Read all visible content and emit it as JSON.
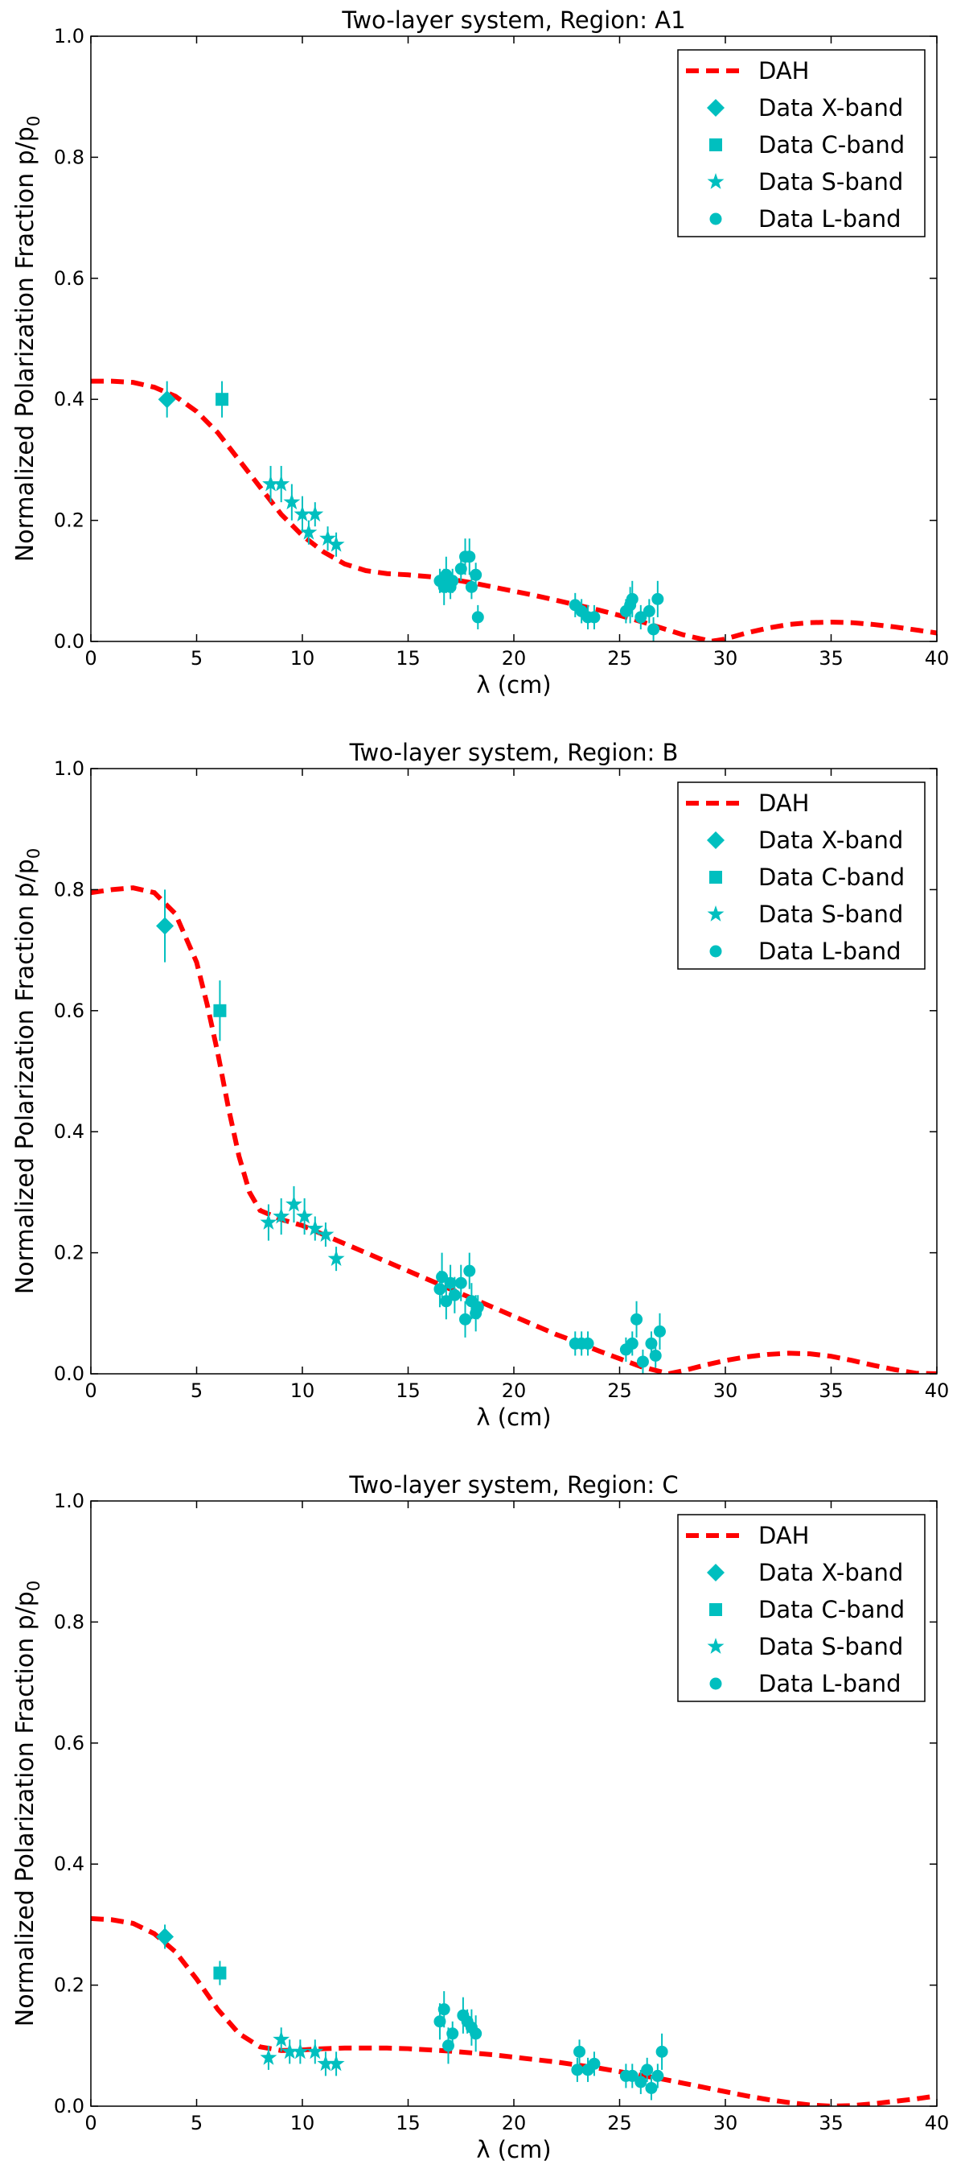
{
  "figure": {
    "model_curve_color": "#ff0000",
    "data_marker_color": "#00bfbf",
    "legend": {
      "placement": "top-right",
      "entries": [
        "DAH",
        "Data X-band",
        "Data C-band",
        "Data S-band",
        "Data L-band"
      ]
    },
    "xlabel": "λ (cm)",
    "ylabel": "Normalized Polarization Fraction p/p",
    "ylabel_subscript": "0",
    "xticks": [
      "0",
      "5",
      "10",
      "15",
      "20",
      "25",
      "30",
      "35",
      "40"
    ],
    "yticks": [
      "0.0",
      "0.2",
      "0.4",
      "0.6",
      "0.8",
      "1.0"
    ]
  },
  "chart_data": [
    {
      "type": "scatter",
      "title": "Two-layer system, Region: A1",
      "xlabel": "λ (cm)",
      "ylabel": "Normalized Polarization Fraction p/p0",
      "xlim": [
        0,
        40
      ],
      "ylim": [
        0,
        1
      ],
      "model": {
        "name": "DAH",
        "x": [
          0,
          1,
          2,
          3,
          4,
          5,
          6,
          7,
          8,
          9,
          10,
          11,
          12,
          13,
          14,
          15,
          16,
          17,
          18,
          19,
          20,
          21,
          22,
          23,
          24,
          25,
          26,
          27,
          28,
          29,
          29.3,
          30,
          31,
          32,
          33,
          34,
          35,
          36,
          37,
          38,
          39,
          40
        ],
        "y": [
          0.43,
          0.43,
          0.428,
          0.42,
          0.405,
          0.38,
          0.345,
          0.3,
          0.255,
          0.21,
          0.175,
          0.148,
          0.128,
          0.117,
          0.112,
          0.11,
          0.107,
          0.103,
          0.097,
          0.09,
          0.083,
          0.076,
          0.068,
          0.06,
          0.052,
          0.043,
          0.033,
          0.022,
          0.011,
          0.003,
          0.0,
          0.004,
          0.014,
          0.022,
          0.028,
          0.031,
          0.032,
          0.031,
          0.028,
          0.024,
          0.019,
          0.014
        ]
      },
      "series": [
        {
          "name": "Data X-band",
          "marker": "diamond",
          "points": [
            [
              3.6,
              0.4,
              0.03
            ]
          ]
        },
        {
          "name": "Data C-band",
          "marker": "square",
          "points": [
            [
              6.2,
              0.4,
              0.03
            ]
          ]
        },
        {
          "name": "Data S-band",
          "marker": "star",
          "points": [
            [
              8.5,
              0.26,
              0.03
            ],
            [
              9.0,
              0.26,
              0.03
            ],
            [
              9.5,
              0.23,
              0.03
            ],
            [
              10.0,
              0.21,
              0.03
            ],
            [
              10.3,
              0.18,
              0.02
            ],
            [
              10.6,
              0.21,
              0.02
            ],
            [
              11.2,
              0.17,
              0.02
            ],
            [
              11.6,
              0.16,
              0.02
            ]
          ]
        },
        {
          "name": "Data L-band",
          "marker": "circle",
          "points": [
            [
              16.5,
              0.1,
              0.02
            ],
            [
              16.7,
              0.09,
              0.03
            ],
            [
              16.8,
              0.11,
              0.03
            ],
            [
              17.0,
              0.09,
              0.02
            ],
            [
              17.1,
              0.1,
              0.02
            ],
            [
              17.5,
              0.12,
              0.02
            ],
            [
              17.7,
              0.14,
              0.03
            ],
            [
              17.9,
              0.14,
              0.03
            ],
            [
              18.0,
              0.09,
              0.02
            ],
            [
              18.2,
              0.11,
              0.02
            ],
            [
              18.3,
              0.04,
              0.02
            ],
            [
              22.9,
              0.06,
              0.02
            ],
            [
              23.2,
              0.05,
              0.02
            ],
            [
              23.5,
              0.04,
              0.02
            ],
            [
              23.8,
              0.04,
              0.02
            ],
            [
              25.3,
              0.05,
              0.02
            ],
            [
              25.5,
              0.06,
              0.03
            ],
            [
              25.6,
              0.07,
              0.03
            ],
            [
              26.0,
              0.04,
              0.02
            ],
            [
              26.4,
              0.05,
              0.02
            ],
            [
              26.6,
              0.02,
              0.02
            ],
            [
              26.8,
              0.07,
              0.03
            ]
          ]
        }
      ]
    },
    {
      "type": "scatter",
      "title": "Two-layer system, Region: B",
      "xlabel": "λ (cm)",
      "ylabel": "Normalized Polarization Fraction p/p0",
      "xlim": [
        0,
        40
      ],
      "ylim": [
        0,
        1
      ],
      "model": {
        "name": "DAH",
        "x": [
          0,
          1,
          2,
          3,
          4,
          5,
          5.5,
          6,
          6.5,
          7,
          7.5,
          8,
          9,
          10,
          11,
          12,
          13,
          14,
          15,
          16,
          17,
          18,
          19,
          20,
          21,
          22,
          23,
          24,
          25,
          26,
          27,
          27.3,
          28,
          29,
          30,
          31,
          32,
          33,
          34,
          35,
          36,
          37,
          38,
          39,
          40
        ],
        "y": [
          0.795,
          0.8,
          0.803,
          0.795,
          0.76,
          0.68,
          0.61,
          0.53,
          0.44,
          0.36,
          0.3,
          0.27,
          0.255,
          0.245,
          0.23,
          0.215,
          0.2,
          0.185,
          0.17,
          0.155,
          0.14,
          0.125,
          0.11,
          0.095,
          0.08,
          0.065,
          0.052,
          0.038,
          0.025,
          0.012,
          0.003,
          0.0,
          0.005,
          0.014,
          0.022,
          0.028,
          0.032,
          0.034,
          0.033,
          0.029,
          0.022,
          0.014,
          0.007,
          0.001,
          0.0
        ]
      },
      "series": [
        {
          "name": "Data X-band",
          "marker": "diamond",
          "points": [
            [
              3.5,
              0.74,
              0.06
            ]
          ]
        },
        {
          "name": "Data C-band",
          "marker": "square",
          "points": [
            [
              6.1,
              0.6,
              0.05
            ]
          ]
        },
        {
          "name": "Data S-band",
          "marker": "star",
          "points": [
            [
              8.4,
              0.25,
              0.03
            ],
            [
              9.0,
              0.26,
              0.03
            ],
            [
              9.6,
              0.28,
              0.03
            ],
            [
              10.1,
              0.26,
              0.03
            ],
            [
              10.6,
              0.24,
              0.02
            ],
            [
              11.1,
              0.23,
              0.02
            ],
            [
              11.6,
              0.19,
              0.02
            ]
          ]
        },
        {
          "name": "Data L-band",
          "marker": "circle",
          "points": [
            [
              16.5,
              0.14,
              0.03
            ],
            [
              16.6,
              0.16,
              0.04
            ],
            [
              16.8,
              0.12,
              0.03
            ],
            [
              17.0,
              0.15,
              0.03
            ],
            [
              17.2,
              0.13,
              0.03
            ],
            [
              17.5,
              0.15,
              0.03
            ],
            [
              17.7,
              0.09,
              0.03
            ],
            [
              17.9,
              0.17,
              0.03
            ],
            [
              18.0,
              0.12,
              0.03
            ],
            [
              18.2,
              0.1,
              0.03
            ],
            [
              18.3,
              0.11,
              0.02
            ],
            [
              22.9,
              0.05,
              0.02
            ],
            [
              23.2,
              0.05,
              0.02
            ],
            [
              23.5,
              0.05,
              0.02
            ],
            [
              25.3,
              0.04,
              0.02
            ],
            [
              25.6,
              0.05,
              0.02
            ],
            [
              25.8,
              0.09,
              0.03
            ],
            [
              26.1,
              0.02,
              0.02
            ],
            [
              26.5,
              0.05,
              0.02
            ],
            [
              26.7,
              0.03,
              0.02
            ],
            [
              26.9,
              0.07,
              0.03
            ]
          ]
        }
      ]
    },
    {
      "type": "scatter",
      "title": "Two-layer system, Region: C",
      "xlabel": "λ (cm)",
      "ylabel": "Normalized Polarization Fraction p/p0",
      "xlim": [
        0,
        40
      ],
      "ylim": [
        0,
        1
      ],
      "model": {
        "name": "DAH",
        "x": [
          0,
          1,
          2,
          3,
          4,
          5,
          6,
          7,
          8,
          9,
          10,
          11,
          12,
          13,
          14,
          15,
          16,
          17,
          18,
          19,
          20,
          21,
          22,
          23,
          24,
          25,
          26,
          27,
          28,
          29,
          30,
          31,
          32,
          33,
          34,
          35,
          36,
          37,
          38,
          39,
          40
        ],
        "y": [
          0.31,
          0.308,
          0.302,
          0.285,
          0.255,
          0.21,
          0.16,
          0.12,
          0.098,
          0.092,
          0.093,
          0.095,
          0.096,
          0.096,
          0.096,
          0.095,
          0.093,
          0.091,
          0.088,
          0.085,
          0.081,
          0.077,
          0.073,
          0.068,
          0.063,
          0.057,
          0.051,
          0.045,
          0.038,
          0.031,
          0.024,
          0.017,
          0.011,
          0.006,
          0.002,
          0.0,
          0.001,
          0.004,
          0.008,
          0.012,
          0.017
        ]
      },
      "series": [
        {
          "name": "Data X-band",
          "marker": "diamond",
          "points": [
            [
              3.5,
              0.28,
              0.02
            ]
          ]
        },
        {
          "name": "Data C-band",
          "marker": "square",
          "points": [
            [
              6.1,
              0.22,
              0.02
            ]
          ]
        },
        {
          "name": "Data S-band",
          "marker": "star",
          "points": [
            [
              8.4,
              0.08,
              0.02
            ],
            [
              9.0,
              0.11,
              0.02
            ],
            [
              9.4,
              0.09,
              0.02
            ],
            [
              9.9,
              0.09,
              0.02
            ],
            [
              10.6,
              0.09,
              0.02
            ],
            [
              11.1,
              0.07,
              0.02
            ],
            [
              11.6,
              0.07,
              0.02
            ]
          ]
        },
        {
          "name": "Data L-band",
          "marker": "circle",
          "points": [
            [
              16.5,
              0.14,
              0.03
            ],
            [
              16.7,
              0.16,
              0.03
            ],
            [
              16.9,
              0.1,
              0.03
            ],
            [
              17.1,
              0.12,
              0.02
            ],
            [
              17.6,
              0.15,
              0.03
            ],
            [
              17.8,
              0.14,
              0.02
            ],
            [
              18.0,
              0.13,
              0.03
            ],
            [
              18.2,
              0.12,
              0.03
            ],
            [
              23.0,
              0.06,
              0.02
            ],
            [
              23.1,
              0.09,
              0.02
            ],
            [
              23.5,
              0.06,
              0.02
            ],
            [
              23.8,
              0.07,
              0.02
            ],
            [
              25.3,
              0.05,
              0.02
            ],
            [
              25.6,
              0.05,
              0.02
            ],
            [
              26.0,
              0.04,
              0.02
            ],
            [
              26.3,
              0.06,
              0.02
            ],
            [
              26.5,
              0.03,
              0.02
            ],
            [
              26.8,
              0.05,
              0.02
            ],
            [
              27.0,
              0.09,
              0.03
            ]
          ]
        }
      ]
    }
  ]
}
